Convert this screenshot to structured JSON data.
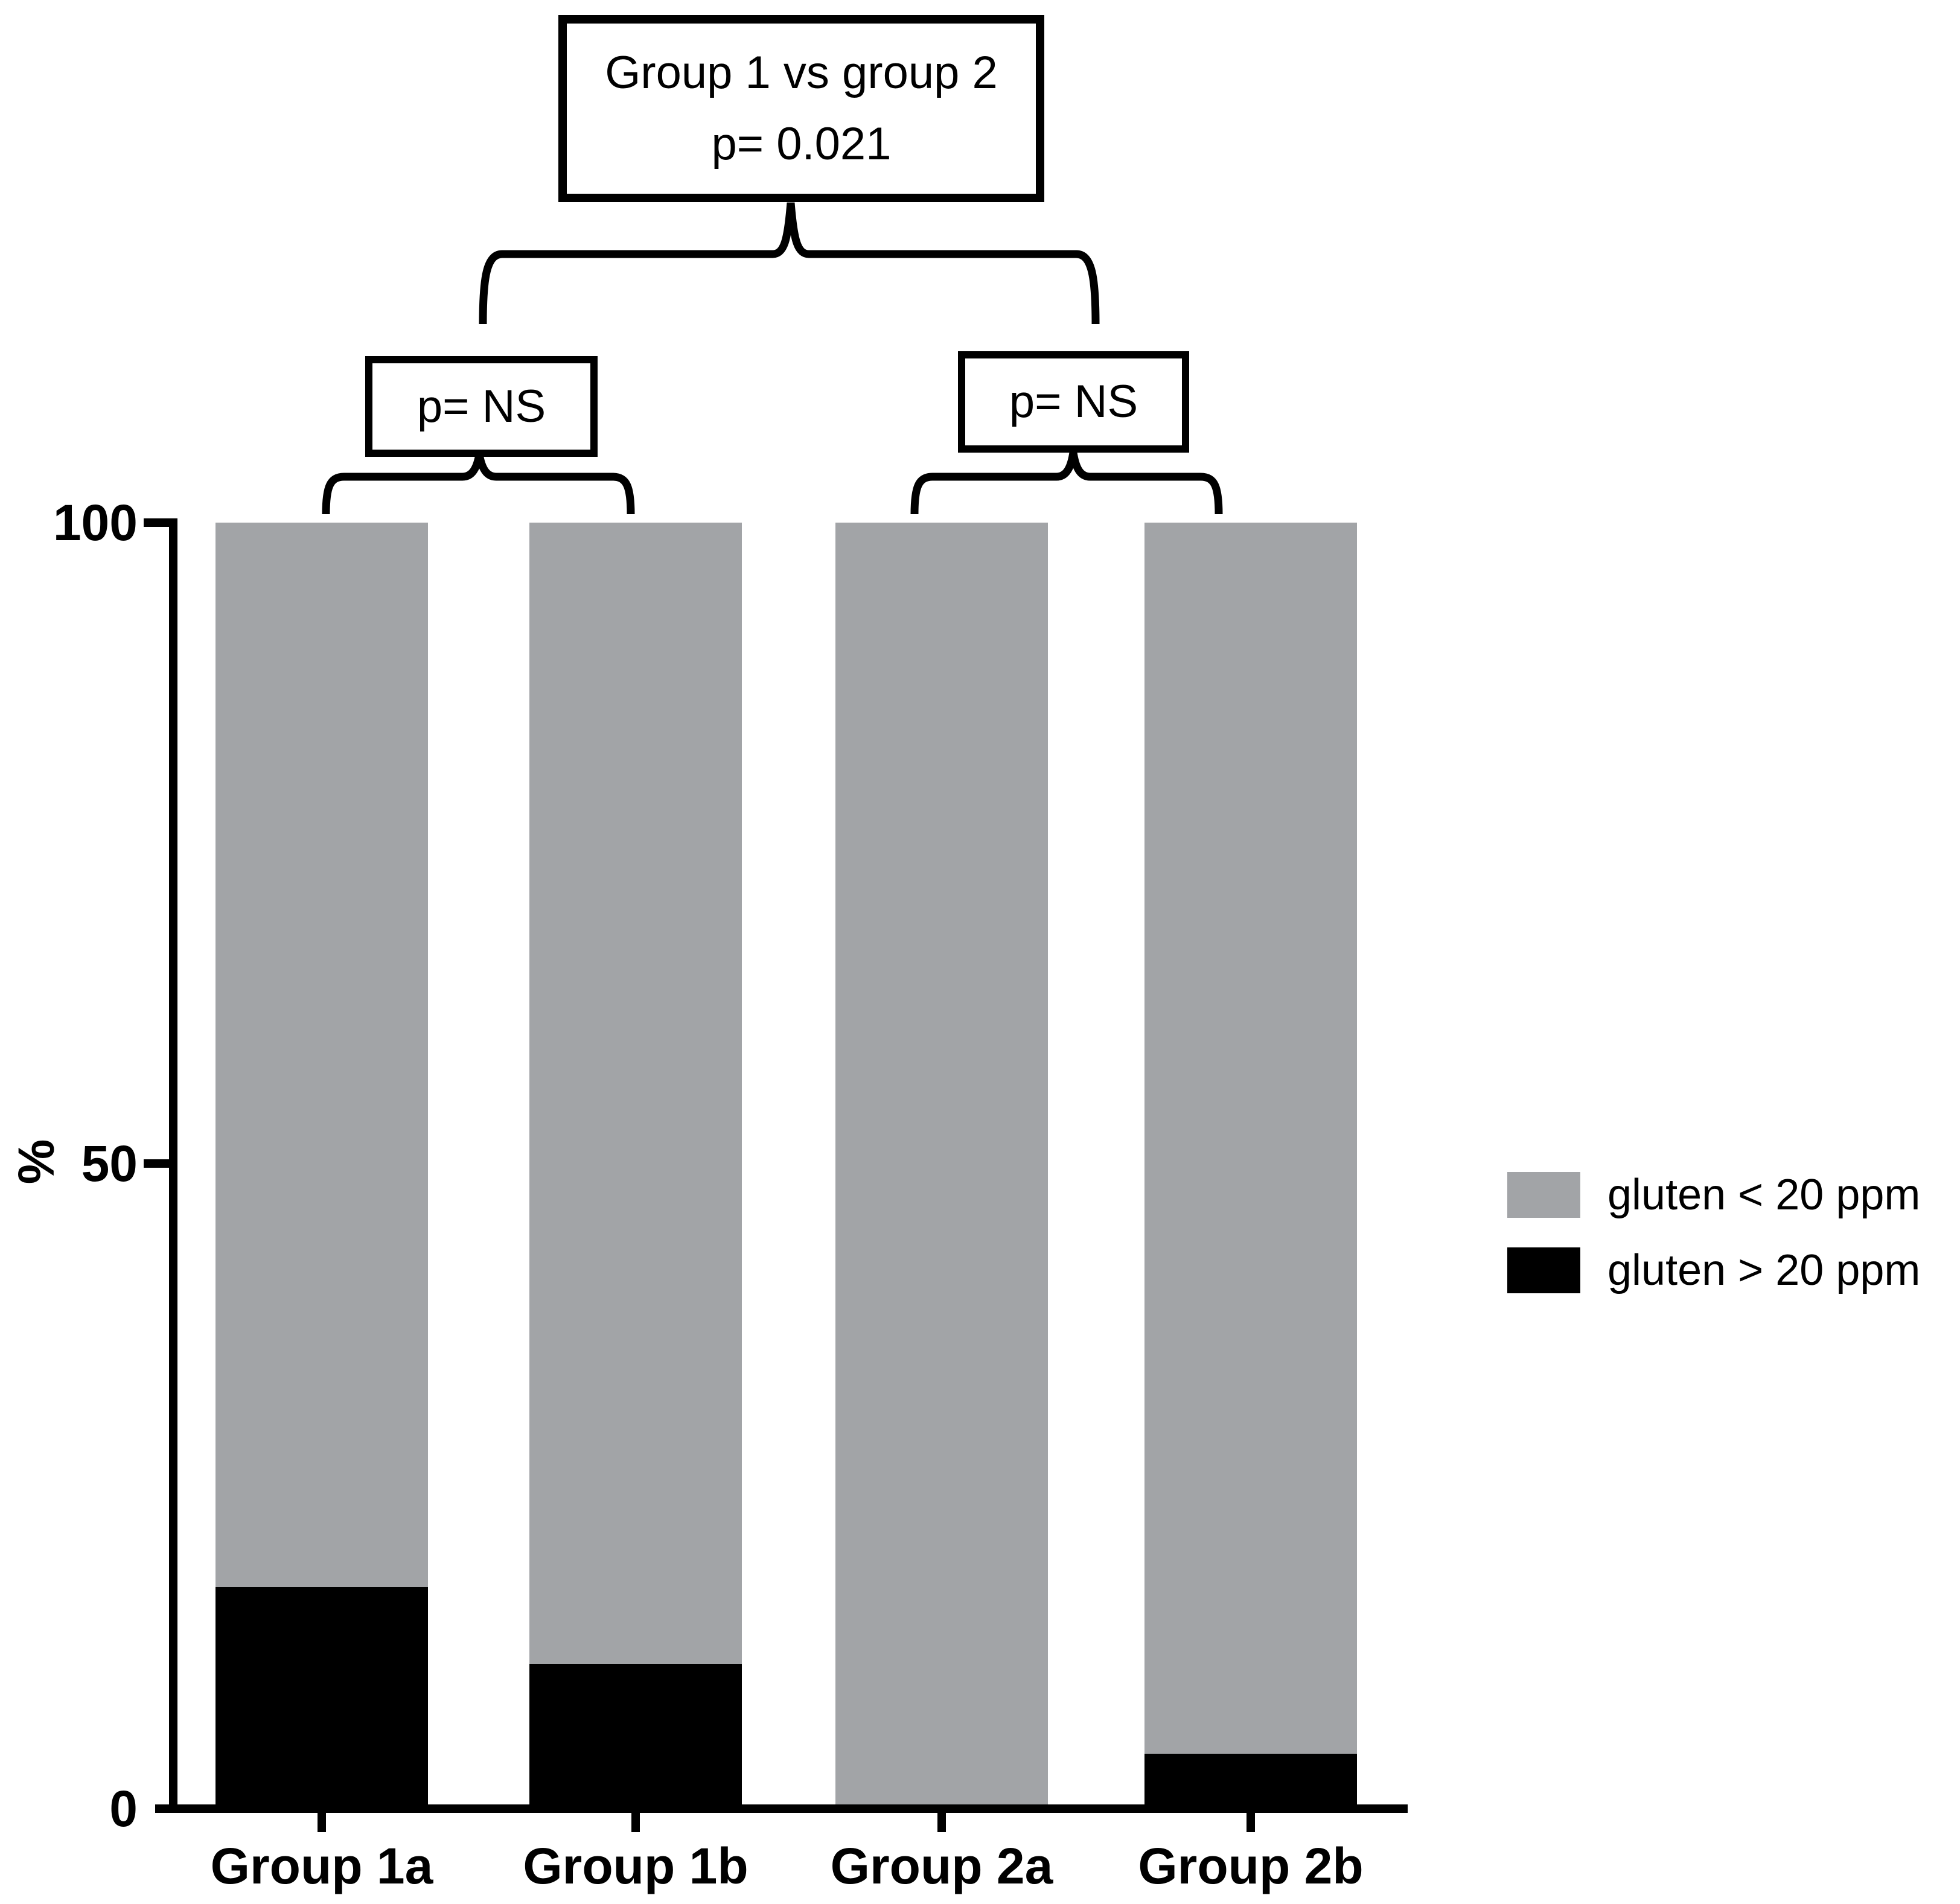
{
  "chart_data": {
    "type": "bar",
    "stacked": true,
    "categories": [
      "Group 1a",
      "Group 1b",
      "Group 2a",
      "Group 2b"
    ],
    "series": [
      {
        "name": "gluten < 20 ppm",
        "color": "#a2a4a7",
        "values": [
          83,
          89,
          100,
          96
        ]
      },
      {
        "name": "gluten > 20 ppm",
        "color": "#000000",
        "values": [
          17,
          11,
          0,
          4
        ]
      }
    ],
    "title": "",
    "xlabel": "",
    "ylabel": "%",
    "ylim": [
      0,
      100
    ],
    "yticks": [
      0,
      50,
      100
    ],
    "grid": false,
    "legend_position": "right"
  },
  "axis": {
    "ylabel": "%",
    "ytick_labels": [
      "100",
      "50",
      "0"
    ]
  },
  "annotations": {
    "top_box": {
      "line1": "Group 1 vs group 2",
      "line2": "p= 0.021"
    },
    "group1_box": {
      "label": "p= NS"
    },
    "group2_box": {
      "label": "p= NS"
    }
  },
  "legend": {
    "items": [
      {
        "label": "gluten < 20 ppm",
        "swatch_color": "#a2a4a7"
      },
      {
        "label": "gluten > 20 ppm",
        "swatch_color": "#000000"
      }
    ]
  }
}
